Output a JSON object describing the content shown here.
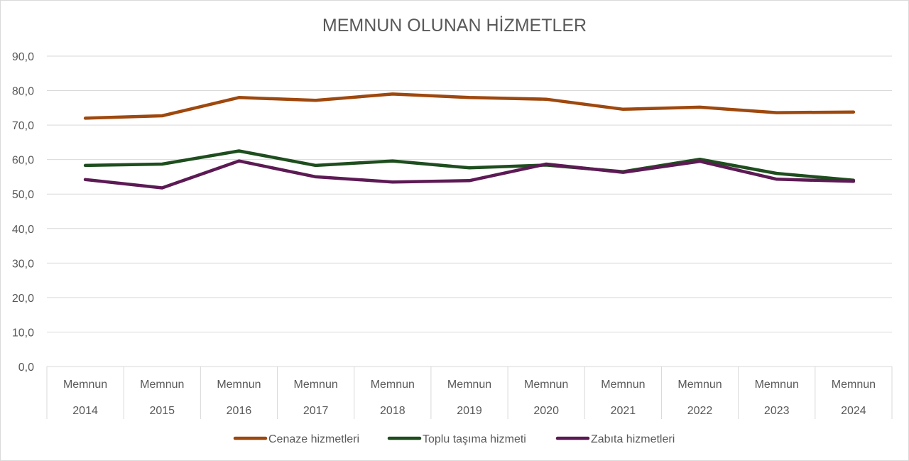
{
  "chart_data": {
    "type": "line",
    "title": "MEMNUN OLUNAN HİZMETLER",
    "categories": [
      [
        "Memnun",
        "2014"
      ],
      [
        "Memnun",
        "2015"
      ],
      [
        "Memnun",
        "2016"
      ],
      [
        "Memnun",
        "2017"
      ],
      [
        "Memnun",
        "2018"
      ],
      [
        "Memnun",
        "2019"
      ],
      [
        "Memnun",
        "2020"
      ],
      [
        "Memnun",
        "2021"
      ],
      [
        "Memnun",
        "2022"
      ],
      [
        "Memnun",
        "2023"
      ],
      [
        "Memnun",
        "2024"
      ]
    ],
    "ylim": [
      0,
      90
    ],
    "yticks": [
      0,
      10,
      20,
      30,
      40,
      50,
      60,
      70,
      80,
      90
    ],
    "ytick_labels": [
      "0,0",
      "10,0",
      "20,0",
      "30,0",
      "40,0",
      "50,0",
      "60,0",
      "70,0",
      "80,0",
      "90,0"
    ],
    "grid": true,
    "legend_position": "bottom",
    "series": [
      {
        "name": "Cenaze hizmetleri",
        "color": "#9e480e",
        "values": [
          72.0,
          72.7,
          78.0,
          77.2,
          79.0,
          78.0,
          77.5,
          74.6,
          75.2,
          73.6,
          73.8
        ]
      },
      {
        "name": "Toplu taşıma hizmeti",
        "color": "#1e4d1e",
        "values": [
          58.3,
          58.7,
          62.5,
          58.3,
          59.6,
          57.6,
          58.4,
          56.5,
          60.1,
          56.0,
          54.0
        ]
      },
      {
        "name": "Zabıta hizmetleri",
        "color": "#5c1a54",
        "values": [
          54.2,
          51.8,
          59.6,
          55.0,
          53.5,
          53.9,
          58.7,
          56.3,
          59.5,
          54.3,
          53.7
        ]
      }
    ]
  }
}
